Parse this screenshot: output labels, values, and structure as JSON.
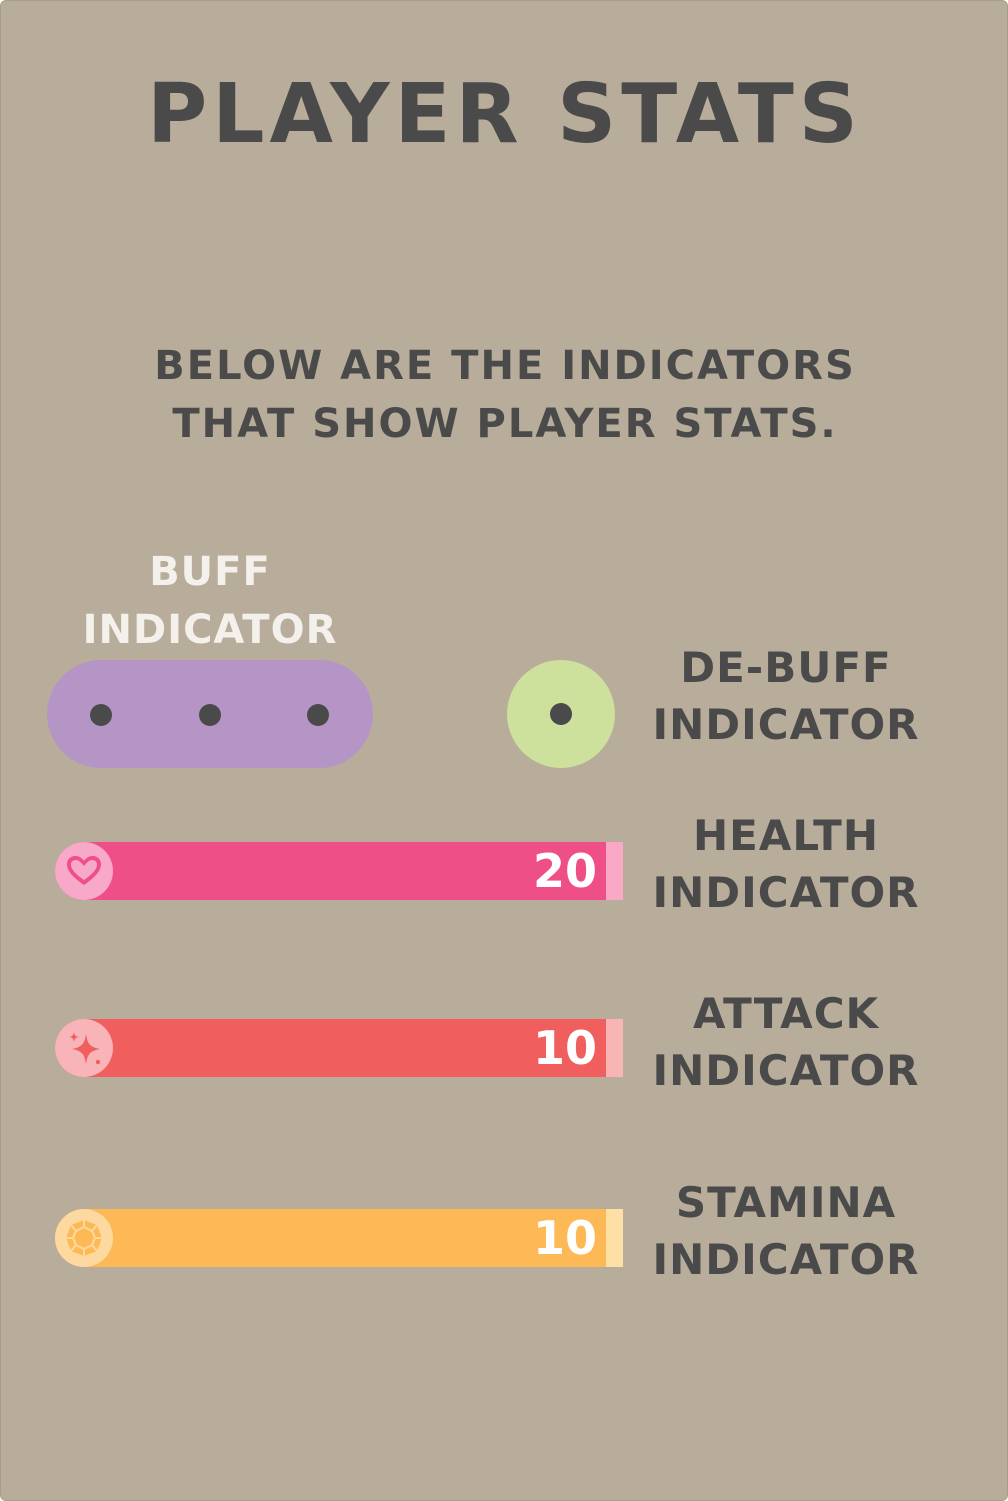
{
  "title": "PLAYER STATS",
  "subtitle": {
    "line1": "BELOW ARE THE INDICATORS",
    "line2": "THAT SHOW PLAYER STATS."
  },
  "buff": {
    "label_line1": "BUFF",
    "label_line2": "INDICATOR",
    "dot_count": 3,
    "color": "#b594c6"
  },
  "debuff": {
    "label_line1": "DE-BUFF",
    "label_line2": "INDICATOR",
    "dot_count": 1,
    "color": "#cde09c"
  },
  "stats": [
    {
      "name": "health",
      "label_line1": "HEALTH",
      "label_line2": "INDICATOR",
      "value": "20",
      "icon": "heart-icon",
      "bar_color": "#ef4f87",
      "icon_bg": "#f8a8c8",
      "icon_color": "#ef4f87",
      "end_color": "#f9a9c6"
    },
    {
      "name": "attack",
      "label_line1": "ATTACK",
      "label_line2": "INDICATOR",
      "value": "10",
      "icon": "sparkle-icon",
      "bar_color": "#f05e5e",
      "icon_bg": "#f8b4b8",
      "icon_color": "#f05e5e",
      "end_color": "#f7b6b4"
    },
    {
      "name": "stamina",
      "label_line1": "STAMINA",
      "label_line2": "INDICATOR",
      "value": "10",
      "icon": "gem-icon",
      "bar_color": "#fdb955",
      "icon_bg": "#fdd9a0",
      "icon_color": "#fdb955",
      "end_color": "#fde0a6"
    }
  ]
}
